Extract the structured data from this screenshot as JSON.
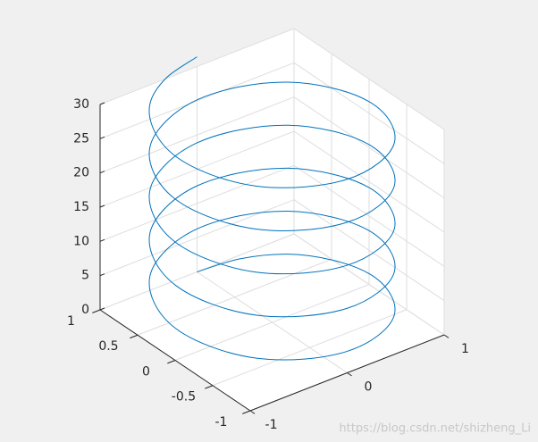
{
  "chart_data": {
    "type": "line3d",
    "xlim": [
      -1,
      1
    ],
    "ylim": [
      -1,
      1
    ],
    "zlim": [
      0,
      30
    ],
    "xticks": [
      -1,
      0,
      1
    ],
    "yticks": [
      -1,
      -0.5,
      0,
      0.5,
      1
    ],
    "zticks": [
      0,
      5,
      10,
      15,
      20,
      25,
      30
    ],
    "grid": true,
    "annotation": "https://blog.csdn.net/shizheng_Li",
    "series": [
      {
        "color": "#0072bd",
        "x": [
          0,
          0.38,
          0.71,
          0.92,
          1,
          0.92,
          0.71,
          0.38,
          0,
          -0.38,
          -0.71,
          -0.92,
          -1,
          -0.92,
          -0.71,
          -0.38,
          0,
          0.38,
          0.71,
          0.92,
          1,
          0.92,
          0.71,
          0.38,
          0,
          -0.38,
          -0.71,
          -0.92,
          -1,
          -0.92,
          -0.71,
          -0.38,
          0,
          0.38,
          0.71,
          0.92,
          1,
          0.92,
          0.71,
          0.38,
          0,
          -0.38,
          -0.71,
          -0.92,
          -1,
          -0.92,
          -0.71,
          -0.38,
          0,
          0.38,
          0.71,
          0.92,
          1,
          0.92,
          0.71,
          0.38,
          0,
          -0.38,
          -0.71,
          -0.92,
          -1,
          -0.92,
          -0.71,
          -0.38,
          0,
          0.38,
          0.71,
          0.92,
          1,
          0.92,
          0.71,
          0.38,
          0,
          -0.38,
          -0.71,
          -0.92,
          -1,
          -0.92,
          -0.71,
          -0.38,
          0
        ],
        "y": [
          1,
          0.92,
          0.71,
          0.38,
          0,
          -0.38,
          -0.71,
          -0.92,
          -1,
          -0.92,
          -0.71,
          -0.38,
          0,
          0.38,
          0.71,
          0.92,
          1,
          0.92,
          0.71,
          0.38,
          0,
          -0.38,
          -0.71,
          -0.92,
          -1,
          -0.92,
          -0.71,
          -0.38,
          0,
          0.38,
          0.71,
          0.92,
          1,
          0.92,
          0.71,
          0.38,
          0,
          -0.38,
          -0.71,
          -0.92,
          -1,
          -0.92,
          -0.71,
          -0.38,
          0,
          0.38,
          0.71,
          0.92,
          1,
          0.92,
          0.71,
          0.38,
          0,
          -0.38,
          -0.71,
          -0.92,
          -1,
          -0.92,
          -0.71,
          -0.38,
          0,
          0.38,
          0.71,
          0.92,
          1,
          0.92,
          0.71,
          0.38,
          0,
          -0.38,
          -0.71,
          -0.92,
          -1,
          -0.92,
          -0.71,
          -0.38,
          0,
          0.38,
          0.71,
          0.92,
          1
        ],
        "z": [
          0,
          0.39,
          0.79,
          1.18,
          1.57,
          1.96,
          2.36,
          2.75,
          3.14,
          3.53,
          3.93,
          4.32,
          4.71,
          5.11,
          5.5,
          5.89,
          6.28,
          6.68,
          7.07,
          7.46,
          7.85,
          8.25,
          8.64,
          9.03,
          9.42,
          9.82,
          10.21,
          10.6,
          11,
          11.39,
          11.78,
          12.17,
          12.57,
          12.96,
          13.35,
          13.74,
          14.14,
          14.53,
          14.92,
          15.32,
          15.71,
          16.1,
          16.49,
          16.89,
          17.28,
          17.67,
          18.06,
          18.46,
          18.85,
          19.24,
          19.63,
          20.03,
          20.42,
          20.81,
          21.21,
          21.6,
          21.99,
          22.38,
          22.78,
          23.17,
          23.56,
          23.95,
          24.35,
          24.74,
          25.13,
          25.53,
          25.92,
          26.31,
          26.7,
          27.1,
          27.49,
          27.88,
          28.27,
          28.67,
          29.06,
          29.45,
          29.85,
          30.24,
          30.63,
          31.02,
          31.42
        ]
      }
    ]
  }
}
